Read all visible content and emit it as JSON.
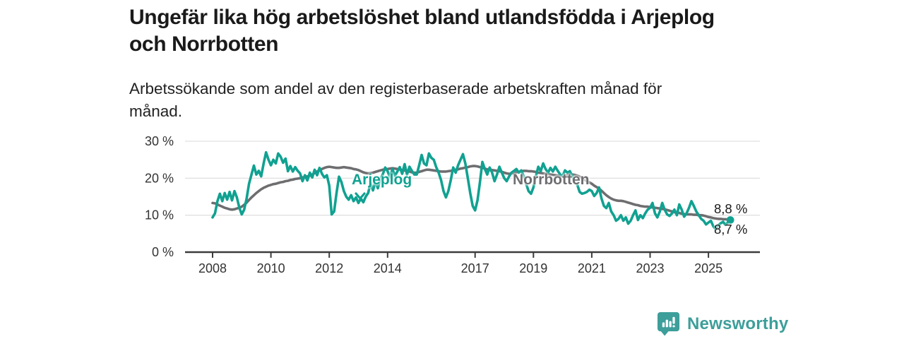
{
  "header": {
    "title": "Ungefär lika hög arbetslöshet bland utlandsfödda i Arjeplog\noch Norrbotten",
    "subtitle": "Arbetssökande som andel av den registerbaserade arbetskraften månad för\nmånad."
  },
  "footer": {
    "brand": "Newsworthy",
    "logo_icon": "bar-chart-speech-bubble"
  },
  "colors": {
    "arjeplog": "#10A191",
    "norrbotten": "#6E6E71",
    "brand": "#3D9E9A",
    "axis": "#3C3C3C",
    "axis_text": "#333333",
    "grid": "#E0E0E0",
    "title_text": "#1A1A1A"
  },
  "chart_data": {
    "type": "line",
    "title": "Ungefär lika hög arbetslöshet bland utlandsfödda i Arjeplog och Norrbotten",
    "subtitle": "Arbetssökande som andel av den registerbaserade arbetskraften månad för månad.",
    "x_unit": "month",
    "x_start_year": 2008.0,
    "x_end_year": 2025.75,
    "x_ticks": [
      2008,
      2010,
      2012,
      2014,
      2017,
      2019,
      2021,
      2023,
      2025
    ],
    "y_ticks": [
      0,
      10,
      20,
      30
    ],
    "y_tick_suffix": " %",
    "ylim": [
      0,
      30
    ],
    "grid": true,
    "legend_position": "inline-labels",
    "series": [
      {
        "name": "Arjeplog",
        "color": "#10A191",
        "end_label": "8,7 %",
        "end_value": 8.7,
        "values": [
          9.4,
          10.5,
          13.8,
          15.8,
          13.8,
          16.0,
          14.2,
          16.3,
          14.0,
          16.5,
          14.8,
          12.0,
          10.2,
          11.5,
          14.5,
          18.5,
          21.0,
          23.4,
          21.0,
          22.0,
          20.5,
          24.0,
          27.0,
          25.0,
          23.5,
          25.0,
          24.0,
          26.7,
          25.8,
          24.2,
          25.3,
          21.9,
          23.3,
          21.8,
          23.0,
          22.0,
          21.3,
          19.2,
          20.8,
          19.4,
          21.5,
          20.2,
          22.3,
          20.8,
          22.8,
          21.2,
          20.2,
          20.8,
          18.0,
          10.2,
          11.0,
          16.0,
          20.4,
          19.0,
          16.5,
          15.0,
          14.2,
          15.4,
          13.8,
          14.8,
          13.3,
          14.5,
          13.5,
          15.0,
          16.0,
          18.7,
          16.7,
          19.2,
          17.3,
          19.8,
          21.0,
          22.9,
          21.9,
          20.2,
          22.5,
          20.6,
          21.8,
          23.0,
          21.2,
          23.8,
          21.0,
          23.1,
          22.0,
          21.0,
          21.0,
          23.5,
          26.3,
          24.0,
          23.5,
          26.7,
          25.5,
          25.0,
          23.0,
          21.5,
          19.5,
          16.5,
          14.8,
          16.5,
          19.5,
          22.9,
          21.5,
          23.5,
          25.0,
          26.5,
          24.0,
          20.0,
          16.0,
          12.5,
          11.3,
          14.0,
          19.0,
          24.4,
          22.5,
          21.0,
          22.9,
          21.5,
          19.2,
          21.0,
          23.1,
          21.5,
          20.0,
          19.2,
          20.5,
          21.5,
          22.0,
          22.5,
          21.5,
          22.1,
          20.5,
          18.5,
          16.5,
          15.8,
          17.5,
          20.5,
          23.1,
          21.9,
          24.0,
          22.5,
          21.5,
          22.8,
          21.8,
          23.1,
          22.0,
          21.0,
          20.6,
          22.1,
          21.5,
          21.9,
          20.5,
          18.9,
          18.3,
          16.3,
          15.8,
          16.0,
          16.3,
          16.9,
          16.5,
          15.2,
          16.0,
          17.5,
          14.5,
          12.5,
          11.9,
          13.3,
          11.0,
          10.0,
          8.5,
          9.0,
          10.0,
          8.5,
          9.4,
          7.7,
          8.5,
          10.0,
          11.3,
          8.7,
          10.0,
          9.2,
          10.5,
          11.5,
          12.0,
          13.3,
          10.5,
          9.4,
          11.0,
          13.3,
          11.5,
          10.2,
          9.8,
          10.5,
          11.5,
          10.0,
          12.9,
          11.5,
          9.6,
          10.5,
          12.0,
          13.8,
          12.5,
          11.0,
          10.0,
          9.0,
          8.5,
          7.5,
          8.0,
          8.5,
          7.0,
          6.2,
          7.2,
          7.8,
          8.2,
          7.4,
          8.0,
          8.7
        ]
      },
      {
        "name": "Norrbotten",
        "color": "#6E6E71",
        "end_label": "8,8 %",
        "end_value": 8.8,
        "values": [
          13.3,
          13.2,
          12.9,
          12.6,
          12.3,
          12.0,
          11.8,
          11.6,
          11.5,
          11.6,
          11.8,
          12.0,
          12.3,
          12.8,
          13.4,
          14.1,
          14.8,
          15.4,
          16.0,
          16.5,
          17.0,
          17.4,
          17.7,
          18.0,
          18.2,
          18.4,
          18.5,
          18.7,
          18.9,
          19.0,
          19.2,
          19.3,
          19.5,
          19.6,
          19.8,
          19.9,
          20.0,
          20.2,
          20.3,
          20.5,
          20.7,
          21.0,
          21.4,
          21.8,
          22.2,
          22.5,
          22.8,
          23.0,
          23.1,
          23.0,
          22.9,
          22.8,
          22.8,
          22.9,
          23.0,
          22.9,
          22.8,
          22.7,
          22.5,
          22.4,
          22.2,
          21.9,
          21.6,
          21.4,
          21.3,
          21.4,
          21.5,
          21.7,
          21.9,
          22.1,
          22.3,
          22.4,
          22.5,
          22.6,
          22.7,
          22.6,
          22.5,
          22.4,
          22.2,
          22.1,
          21.9,
          21.8,
          21.6,
          21.5,
          21.5,
          21.7,
          21.9,
          22.1,
          22.3,
          22.3,
          22.2,
          22.1,
          22.0,
          21.9,
          21.8,
          21.8,
          21.8,
          21.9,
          22.0,
          22.1,
          22.3,
          22.4,
          22.6,
          22.7,
          22.9,
          23.0,
          23.2,
          23.3,
          23.3,
          23.2,
          23.0,
          22.8,
          22.6,
          22.4,
          22.3,
          22.2,
          22.1,
          22.0,
          21.9,
          21.7,
          21.5,
          21.3,
          21.2,
          21.3,
          21.4,
          21.6,
          21.7,
          21.9,
          22.0,
          22.0,
          21.9,
          21.9,
          21.8,
          21.7,
          21.5,
          21.4,
          21.3,
          21.2,
          21.1,
          21.0,
          20.9,
          20.8,
          20.7,
          20.6,
          20.5,
          20.6,
          20.8,
          21.0,
          21.0,
          20.9,
          20.7,
          20.4,
          20.0,
          19.6,
          19.2,
          18.9,
          18.5,
          18.0,
          17.6,
          17.2,
          16.6,
          16.0,
          15.4,
          14.9,
          14.5,
          14.2,
          14.0,
          13.9,
          13.9,
          13.8,
          13.6,
          13.4,
          13.2,
          13.0,
          12.8,
          12.7,
          12.5,
          12.4,
          12.3,
          12.3,
          12.2,
          12.1,
          12.0,
          11.9,
          11.8,
          11.7,
          11.6,
          11.4,
          11.2,
          11.0,
          10.8,
          10.7,
          10.6,
          10.4,
          10.3,
          10.2,
          10.2,
          10.2,
          10.1,
          10.1,
          10.0,
          10.0,
          9.9,
          9.7,
          9.5,
          9.4,
          9.2,
          9.1,
          9.0,
          9.0,
          8.9,
          8.9,
          8.8,
          8.8
        ]
      }
    ]
  }
}
